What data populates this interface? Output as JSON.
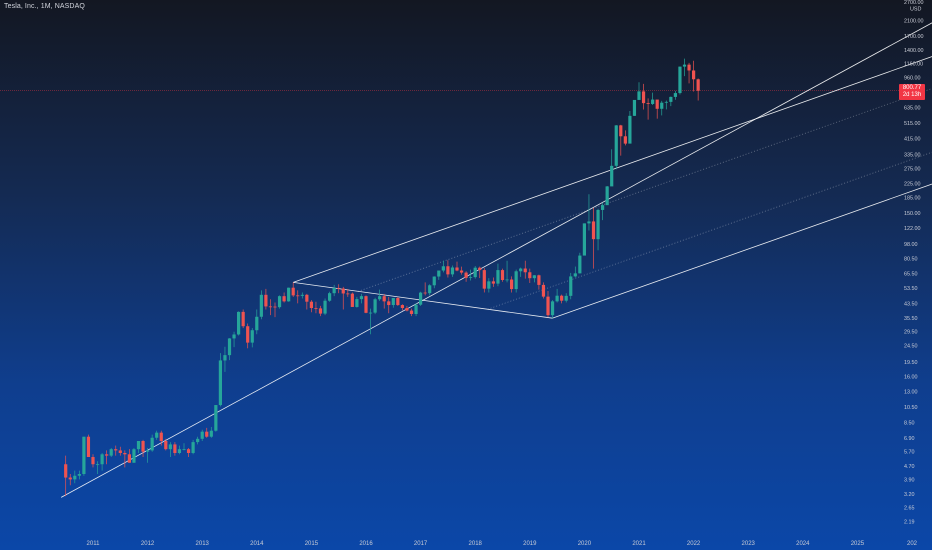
{
  "header": {
    "title": "Tesla, Inc., 1M, NASDAQ"
  },
  "price_axis": {
    "currency": "USD",
    "last_price": "800.77",
    "countdown": "2d 13h"
  },
  "colors": {
    "up": "#26a69a",
    "down": "#ef5350",
    "channel": "#ffffff",
    "badge": "#f23645"
  },
  "chart_data": {
    "type": "candlestick",
    "title": "Tesla, Inc., 1M, NASDAQ",
    "y_scale": "log",
    "ylim": [
      1.95,
      2700
    ],
    "x_range": [
      "2010-03",
      "2026-06"
    ],
    "y_ticks": [
      "2700.00",
      "2100.00",
      "1700.00",
      "1400.00",
      "1160.00",
      "960.00",
      "800.00",
      "635.00",
      "515.00",
      "415.00",
      "335.00",
      "275.00",
      "225.00",
      "185.00",
      "150.00",
      "122.00",
      "98.00",
      "80.50",
      "65.50",
      "53.50",
      "43.50",
      "35.50",
      "29.50",
      "24.50",
      "19.50",
      "16.00",
      "13.00",
      "10.50",
      "8.50",
      "6.90",
      "5.70",
      "4.70",
      "3.90",
      "3.20",
      "2.65",
      "2.19"
    ],
    "x_ticks": [
      "2011",
      "2012",
      "2013",
      "2014",
      "2015",
      "2016",
      "2017",
      "2018",
      "2019",
      "2020",
      "2021",
      "2022",
      "2023",
      "2024",
      "2025",
      "202"
    ],
    "candles": [
      {
        "t": "2010-07",
        "o": 4.8,
        "h": 5.4,
        "l": 3.1,
        "c": 4.0
      },
      {
        "t": "2010-08",
        "o": 4.0,
        "h": 4.2,
        "l": 3.6,
        "c": 3.9
      },
      {
        "t": "2010-09",
        "o": 3.9,
        "h": 4.4,
        "l": 3.7,
        "c": 4.1
      },
      {
        "t": "2010-10",
        "o": 4.1,
        "h": 4.4,
        "l": 3.9,
        "c": 4.2
      },
      {
        "t": "2010-11",
        "o": 4.2,
        "h": 7.0,
        "l": 4.1,
        "c": 7.0
      },
      {
        "t": "2010-12",
        "o": 7.0,
        "h": 7.2,
        "l": 5.3,
        "c": 5.3
      },
      {
        "t": "2011-01",
        "o": 5.3,
        "h": 5.5,
        "l": 4.6,
        "c": 4.8
      },
      {
        "t": "2011-02",
        "o": 4.8,
        "h": 5.0,
        "l": 4.2,
        "c": 4.8
      },
      {
        "t": "2011-03",
        "o": 4.8,
        "h": 5.6,
        "l": 4.4,
        "c": 5.5
      },
      {
        "t": "2011-04",
        "o": 5.5,
        "h": 5.8,
        "l": 4.8,
        "c": 5.4
      },
      {
        "t": "2011-05",
        "o": 5.4,
        "h": 6.0,
        "l": 5.3,
        "c": 5.9
      },
      {
        "t": "2011-06",
        "o": 5.9,
        "h": 6.2,
        "l": 5.4,
        "c": 5.8
      },
      {
        "t": "2011-07",
        "o": 5.8,
        "h": 6.1,
        "l": 5.4,
        "c": 5.6
      },
      {
        "t": "2011-08",
        "o": 5.6,
        "h": 5.8,
        "l": 4.6,
        "c": 5.5
      },
      {
        "t": "2011-09",
        "o": 5.5,
        "h": 5.9,
        "l": 4.9,
        "c": 4.9
      },
      {
        "t": "2011-10",
        "o": 4.9,
        "h": 6.0,
        "l": 4.9,
        "c": 5.9
      },
      {
        "t": "2011-11",
        "o": 5.9,
        "h": 6.6,
        "l": 5.6,
        "c": 6.6
      },
      {
        "t": "2011-12",
        "o": 6.6,
        "h": 6.7,
        "l": 5.3,
        "c": 5.7
      },
      {
        "t": "2012-01",
        "o": 5.7,
        "h": 6.0,
        "l": 4.9,
        "c": 5.8
      },
      {
        "t": "2012-02",
        "o": 5.8,
        "h": 7.2,
        "l": 5.7,
        "c": 6.9
      },
      {
        "t": "2012-03",
        "o": 6.9,
        "h": 7.6,
        "l": 6.7,
        "c": 7.4
      },
      {
        "t": "2012-04",
        "o": 7.4,
        "h": 7.6,
        "l": 6.2,
        "c": 6.6
      },
      {
        "t": "2012-05",
        "o": 6.6,
        "h": 6.8,
        "l": 5.8,
        "c": 5.9
      },
      {
        "t": "2012-06",
        "o": 5.9,
        "h": 6.5,
        "l": 5.3,
        "c": 6.3
      },
      {
        "t": "2012-07",
        "o": 6.3,
        "h": 6.5,
        "l": 5.4,
        "c": 5.6
      },
      {
        "t": "2012-08",
        "o": 5.6,
        "h": 6.2,
        "l": 5.5,
        "c": 5.9
      },
      {
        "t": "2012-09",
        "o": 5.9,
        "h": 6.4,
        "l": 5.8,
        "c": 5.9
      },
      {
        "t": "2012-10",
        "o": 5.9,
        "h": 6.0,
        "l": 5.3,
        "c": 5.6
      },
      {
        "t": "2012-11",
        "o": 5.6,
        "h": 6.7,
        "l": 5.5,
        "c": 6.5
      },
      {
        "t": "2012-12",
        "o": 6.5,
        "h": 7.0,
        "l": 6.3,
        "c": 6.8
      },
      {
        "t": "2013-01",
        "o": 6.8,
        "h": 7.7,
        "l": 6.6,
        "c": 7.5
      },
      {
        "t": "2013-02",
        "o": 7.5,
        "h": 7.9,
        "l": 6.9,
        "c": 7.0
      },
      {
        "t": "2013-03",
        "o": 7.0,
        "h": 8.0,
        "l": 6.9,
        "c": 7.6
      },
      {
        "t": "2013-04",
        "o": 7.6,
        "h": 10.8,
        "l": 7.5,
        "c": 10.8
      },
      {
        "t": "2013-05",
        "o": 10.8,
        "h": 22.0,
        "l": 10.6,
        "c": 19.9
      },
      {
        "t": "2013-06",
        "o": 19.9,
        "h": 24.0,
        "l": 17.0,
        "c": 21.4
      },
      {
        "t": "2013-07",
        "o": 21.4,
        "h": 27.0,
        "l": 20.0,
        "c": 26.9
      },
      {
        "t": "2013-08",
        "o": 26.9,
        "h": 29.5,
        "l": 23.9,
        "c": 28.4
      },
      {
        "t": "2013-09",
        "o": 28.4,
        "h": 39.0,
        "l": 28.0,
        "c": 38.7
      },
      {
        "t": "2013-10",
        "o": 38.7,
        "h": 40.0,
        "l": 31.0,
        "c": 31.8
      },
      {
        "t": "2013-11",
        "o": 31.8,
        "h": 33.0,
        "l": 23.5,
        "c": 25.4
      },
      {
        "t": "2013-12",
        "o": 25.4,
        "h": 31.0,
        "l": 23.8,
        "c": 30.1
      },
      {
        "t": "2014-01",
        "o": 30.1,
        "h": 40.0,
        "l": 28.5,
        "c": 36.2
      },
      {
        "t": "2014-02",
        "o": 36.2,
        "h": 52.0,
        "l": 35.0,
        "c": 48.9
      },
      {
        "t": "2014-03",
        "o": 48.9,
        "h": 53.0,
        "l": 40.0,
        "c": 41.7
      },
      {
        "t": "2014-04",
        "o": 41.7,
        "h": 46.0,
        "l": 37.0,
        "c": 41.6
      },
      {
        "t": "2014-05",
        "o": 41.6,
        "h": 44.0,
        "l": 36.0,
        "c": 41.3
      },
      {
        "t": "2014-06",
        "o": 41.3,
        "h": 48.5,
        "l": 40.5,
        "c": 48.0
      },
      {
        "t": "2014-07",
        "o": 48.0,
        "h": 50.5,
        "l": 44.0,
        "c": 44.7
      },
      {
        "t": "2014-08",
        "o": 44.7,
        "h": 54.0,
        "l": 44.5,
        "c": 53.9
      },
      {
        "t": "2014-09",
        "o": 53.9,
        "h": 58.0,
        "l": 47.5,
        "c": 48.5
      },
      {
        "t": "2014-10",
        "o": 48.5,
        "h": 52.0,
        "l": 43.5,
        "c": 48.2
      },
      {
        "t": "2014-11",
        "o": 48.2,
        "h": 50.5,
        "l": 46.5,
        "c": 48.9
      },
      {
        "t": "2014-12",
        "o": 48.9,
        "h": 49.5,
        "l": 40.0,
        "c": 44.5
      },
      {
        "t": "2015-01",
        "o": 44.5,
        "h": 45.5,
        "l": 38.5,
        "c": 40.8
      },
      {
        "t": "2015-02",
        "o": 40.8,
        "h": 44.5,
        "l": 38.0,
        "c": 40.6
      },
      {
        "t": "2015-03",
        "o": 40.6,
        "h": 42.0,
        "l": 36.5,
        "c": 37.8
      },
      {
        "t": "2015-04",
        "o": 37.8,
        "h": 46.5,
        "l": 37.0,
        "c": 45.1
      },
      {
        "t": "2015-05",
        "o": 45.1,
        "h": 51.0,
        "l": 44.5,
        "c": 50.0
      },
      {
        "t": "2015-06",
        "o": 50.0,
        "h": 56.0,
        "l": 48.0,
        "c": 53.7
      },
      {
        "t": "2015-07",
        "o": 53.7,
        "h": 56.5,
        "l": 50.0,
        "c": 53.3
      },
      {
        "t": "2015-08",
        "o": 53.3,
        "h": 54.5,
        "l": 40.0,
        "c": 49.8
      },
      {
        "t": "2015-09",
        "o": 49.8,
        "h": 53.0,
        "l": 47.5,
        "c": 49.7
      },
      {
        "t": "2015-10",
        "o": 49.7,
        "h": 50.5,
        "l": 41.5,
        "c": 41.4
      },
      {
        "t": "2015-11",
        "o": 41.4,
        "h": 47.5,
        "l": 41.0,
        "c": 46.1
      },
      {
        "t": "2015-12",
        "o": 46.1,
        "h": 49.5,
        "l": 43.5,
        "c": 48.0
      },
      {
        "t": "2016-01",
        "o": 48.0,
        "h": 48.5,
        "l": 38.0,
        "c": 38.2
      },
      {
        "t": "2016-02",
        "o": 38.2,
        "h": 40.5,
        "l": 28.5,
        "c": 38.3
      },
      {
        "t": "2016-03",
        "o": 38.3,
        "h": 47.0,
        "l": 37.5,
        "c": 46.0
      },
      {
        "t": "2016-04",
        "o": 46.0,
        "h": 52.5,
        "l": 45.0,
        "c": 48.0
      },
      {
        "t": "2016-05",
        "o": 48.0,
        "h": 49.5,
        "l": 40.5,
        "c": 44.7
      },
      {
        "t": "2016-06",
        "o": 44.7,
        "h": 47.5,
        "l": 38.0,
        "c": 42.5
      },
      {
        "t": "2016-07",
        "o": 42.5,
        "h": 46.5,
        "l": 41.0,
        "c": 46.8
      },
      {
        "t": "2016-08",
        "o": 46.8,
        "h": 47.5,
        "l": 42.0,
        "c": 42.5
      },
      {
        "t": "2016-09",
        "o": 42.5,
        "h": 43.0,
        "l": 39.5,
        "c": 40.8
      },
      {
        "t": "2016-10",
        "o": 40.8,
        "h": 42.0,
        "l": 39.0,
        "c": 39.4
      },
      {
        "t": "2016-11",
        "o": 39.4,
        "h": 40.5,
        "l": 36.5,
        "c": 37.6
      },
      {
        "t": "2016-12",
        "o": 37.6,
        "h": 43.5,
        "l": 36.5,
        "c": 42.7
      },
      {
        "t": "2017-01",
        "o": 42.7,
        "h": 51.0,
        "l": 42.0,
        "c": 50.4
      },
      {
        "t": "2017-02",
        "o": 50.4,
        "h": 58.0,
        "l": 48.5,
        "c": 50.0
      },
      {
        "t": "2017-03",
        "o": 50.0,
        "h": 56.5,
        "l": 48.5,
        "c": 55.7
      },
      {
        "t": "2017-04",
        "o": 55.7,
        "h": 63.0,
        "l": 53.5,
        "c": 62.8
      },
      {
        "t": "2017-05",
        "o": 62.8,
        "h": 67.0,
        "l": 60.0,
        "c": 68.2
      },
      {
        "t": "2017-06",
        "o": 68.2,
        "h": 78.0,
        "l": 66.5,
        "c": 72.3
      },
      {
        "t": "2017-07",
        "o": 72.3,
        "h": 78.5,
        "l": 62.0,
        "c": 64.7
      },
      {
        "t": "2017-08",
        "o": 64.7,
        "h": 73.0,
        "l": 62.5,
        "c": 71.1
      },
      {
        "t": "2017-09",
        "o": 71.1,
        "h": 77.0,
        "l": 67.5,
        "c": 68.2
      },
      {
        "t": "2017-10",
        "o": 68.2,
        "h": 72.0,
        "l": 64.5,
        "c": 66.3
      },
      {
        "t": "2017-11",
        "o": 66.3,
        "h": 67.5,
        "l": 58.5,
        "c": 61.7
      },
      {
        "t": "2017-12",
        "o": 61.7,
        "h": 69.0,
        "l": 59.5,
        "c": 62.3
      },
      {
        "t": "2018-01",
        "o": 62.3,
        "h": 72.5,
        "l": 61.0,
        "c": 70.9
      },
      {
        "t": "2018-02",
        "o": 70.9,
        "h": 72.0,
        "l": 61.5,
        "c": 68.6
      },
      {
        "t": "2018-03",
        "o": 68.6,
        "h": 70.5,
        "l": 50.5,
        "c": 53.2
      },
      {
        "t": "2018-04",
        "o": 53.2,
        "h": 61.5,
        "l": 50.5,
        "c": 58.8
      },
      {
        "t": "2018-05",
        "o": 58.8,
        "h": 62.0,
        "l": 54.5,
        "c": 57.0
      },
      {
        "t": "2018-06",
        "o": 57.0,
        "h": 75.0,
        "l": 55.0,
        "c": 68.6
      },
      {
        "t": "2018-07",
        "o": 68.6,
        "h": 70.0,
        "l": 58.5,
        "c": 59.9
      },
      {
        "t": "2018-08",
        "o": 59.9,
        "h": 78.0,
        "l": 58.0,
        "c": 60.3
      },
      {
        "t": "2018-09",
        "o": 60.3,
        "h": 63.0,
        "l": 50.5,
        "c": 52.9
      },
      {
        "t": "2018-10",
        "o": 52.9,
        "h": 69.0,
        "l": 50.5,
        "c": 67.5
      },
      {
        "t": "2018-11",
        "o": 67.5,
        "h": 71.0,
        "l": 62.5,
        "c": 70.1
      },
      {
        "t": "2018-12",
        "o": 70.1,
        "h": 78.0,
        "l": 61.0,
        "c": 66.6
      },
      {
        "t": "2019-01",
        "o": 66.6,
        "h": 70.0,
        "l": 57.5,
        "c": 61.4
      },
      {
        "t": "2019-02",
        "o": 61.4,
        "h": 64.0,
        "l": 58.0,
        "c": 63.9
      },
      {
        "t": "2019-03",
        "o": 63.9,
        "h": 64.5,
        "l": 52.5,
        "c": 56.0
      },
      {
        "t": "2019-04",
        "o": 56.0,
        "h": 58.0,
        "l": 46.5,
        "c": 47.7
      },
      {
        "t": "2019-05",
        "o": 47.7,
        "h": 51.5,
        "l": 36.0,
        "c": 37.0
      },
      {
        "t": "2019-06",
        "o": 37.0,
        "h": 45.5,
        "l": 35.5,
        "c": 44.7
      },
      {
        "t": "2019-07",
        "o": 44.7,
        "h": 53.0,
        "l": 44.0,
        "c": 48.3
      },
      {
        "t": "2019-08",
        "o": 48.3,
        "h": 49.0,
        "l": 43.5,
        "c": 45.1
      },
      {
        "t": "2019-09",
        "o": 45.1,
        "h": 50.0,
        "l": 44.0,
        "c": 48.2
      },
      {
        "t": "2019-10",
        "o": 48.2,
        "h": 66.0,
        "l": 46.0,
        "c": 62.9
      },
      {
        "t": "2019-11",
        "o": 62.9,
        "h": 72.0,
        "l": 62.0,
        "c": 65.6
      },
      {
        "t": "2019-12",
        "o": 65.6,
        "h": 87.0,
        "l": 65.5,
        "c": 83.7
      },
      {
        "t": "2020-01",
        "o": 83.7,
        "h": 130.0,
        "l": 84.0,
        "c": 130.1
      },
      {
        "t": "2020-02",
        "o": 130.1,
        "h": 194.0,
        "l": 118.0,
        "c": 133.6
      },
      {
        "t": "2020-03",
        "o": 133.6,
        "h": 161.0,
        "l": 70.0,
        "c": 104.8
      },
      {
        "t": "2020-04",
        "o": 104.8,
        "h": 159.0,
        "l": 90.0,
        "c": 156.4
      },
      {
        "t": "2020-05",
        "o": 156.4,
        "h": 173.0,
        "l": 136.0,
        "c": 167.0
      },
      {
        "t": "2020-06",
        "o": 167.0,
        "h": 217.0,
        "l": 170.0,
        "c": 215.9
      },
      {
        "t": "2020-07",
        "o": 215.9,
        "h": 359.0,
        "l": 222.0,
        "c": 286.2
      },
      {
        "t": "2020-08",
        "o": 286.2,
        "h": 500.0,
        "l": 273.0,
        "c": 498.3
      },
      {
        "t": "2020-09",
        "o": 498.3,
        "h": 502.0,
        "l": 329.0,
        "c": 429.0
      },
      {
        "t": "2020-10",
        "o": 429.0,
        "h": 465.0,
        "l": 379.0,
        "c": 388.0
      },
      {
        "t": "2020-11",
        "o": 388.0,
        "h": 607.0,
        "l": 392.0,
        "c": 567.6
      },
      {
        "t": "2020-12",
        "o": 567.6,
        "h": 695.0,
        "l": 566.0,
        "c": 705.7
      },
      {
        "t": "2021-01",
        "o": 705.7,
        "h": 900.0,
        "l": 717.0,
        "c": 793.5
      },
      {
        "t": "2021-02",
        "o": 793.5,
        "h": 880.0,
        "l": 619.0,
        "c": 675.5
      },
      {
        "t": "2021-03",
        "o": 675.5,
        "h": 721.0,
        "l": 539.0,
        "c": 667.9
      },
      {
        "t": "2021-04",
        "o": 667.9,
        "h": 780.0,
        "l": 659.0,
        "c": 709.4
      },
      {
        "t": "2021-05",
        "o": 709.4,
        "h": 706.0,
        "l": 546.0,
        "c": 625.2
      },
      {
        "t": "2021-06",
        "o": 625.2,
        "h": 697.0,
        "l": 571.0,
        "c": 679.7
      },
      {
        "t": "2021-07",
        "o": 679.7,
        "h": 700.0,
        "l": 620.0,
        "c": 687.2
      },
      {
        "t": "2021-08",
        "o": 687.2,
        "h": 740.0,
        "l": 648.0,
        "c": 735.7
      },
      {
        "t": "2021-09",
        "o": 735.7,
        "h": 799.0,
        "l": 708.0,
        "c": 775.5
      },
      {
        "t": "2021-10",
        "o": 775.5,
        "h": 1115.0,
        "l": 760.0,
        "c": 1114.0
      },
      {
        "t": "2021-11",
        "o": 1114.0,
        "h": 1243.0,
        "l": 978.0,
        "c": 1144.8
      },
      {
        "t": "2021-12",
        "o": 1144.8,
        "h": 1172.0,
        "l": 886.0,
        "c": 1056.8
      },
      {
        "t": "2022-01",
        "o": 1056.8,
        "h": 1208.0,
        "l": 792.0,
        "c": 936.7
      },
      {
        "t": "2022-02",
        "o": 936.7,
        "h": 947.0,
        "l": 700.0,
        "c": 800.77
      }
    ],
    "channel": {
      "anchor": {
        "t": "2010-06",
        "v": 3.05
      },
      "upper_start": {
        "t": "2014-09",
        "v": 58.0
      },
      "lower_start": {
        "t": "2019-06",
        "v": 35.5
      },
      "slope_ref": {
        "t": "2014-09",
        "v": 120.0,
        "t2": "2017-06"
      }
    }
  }
}
